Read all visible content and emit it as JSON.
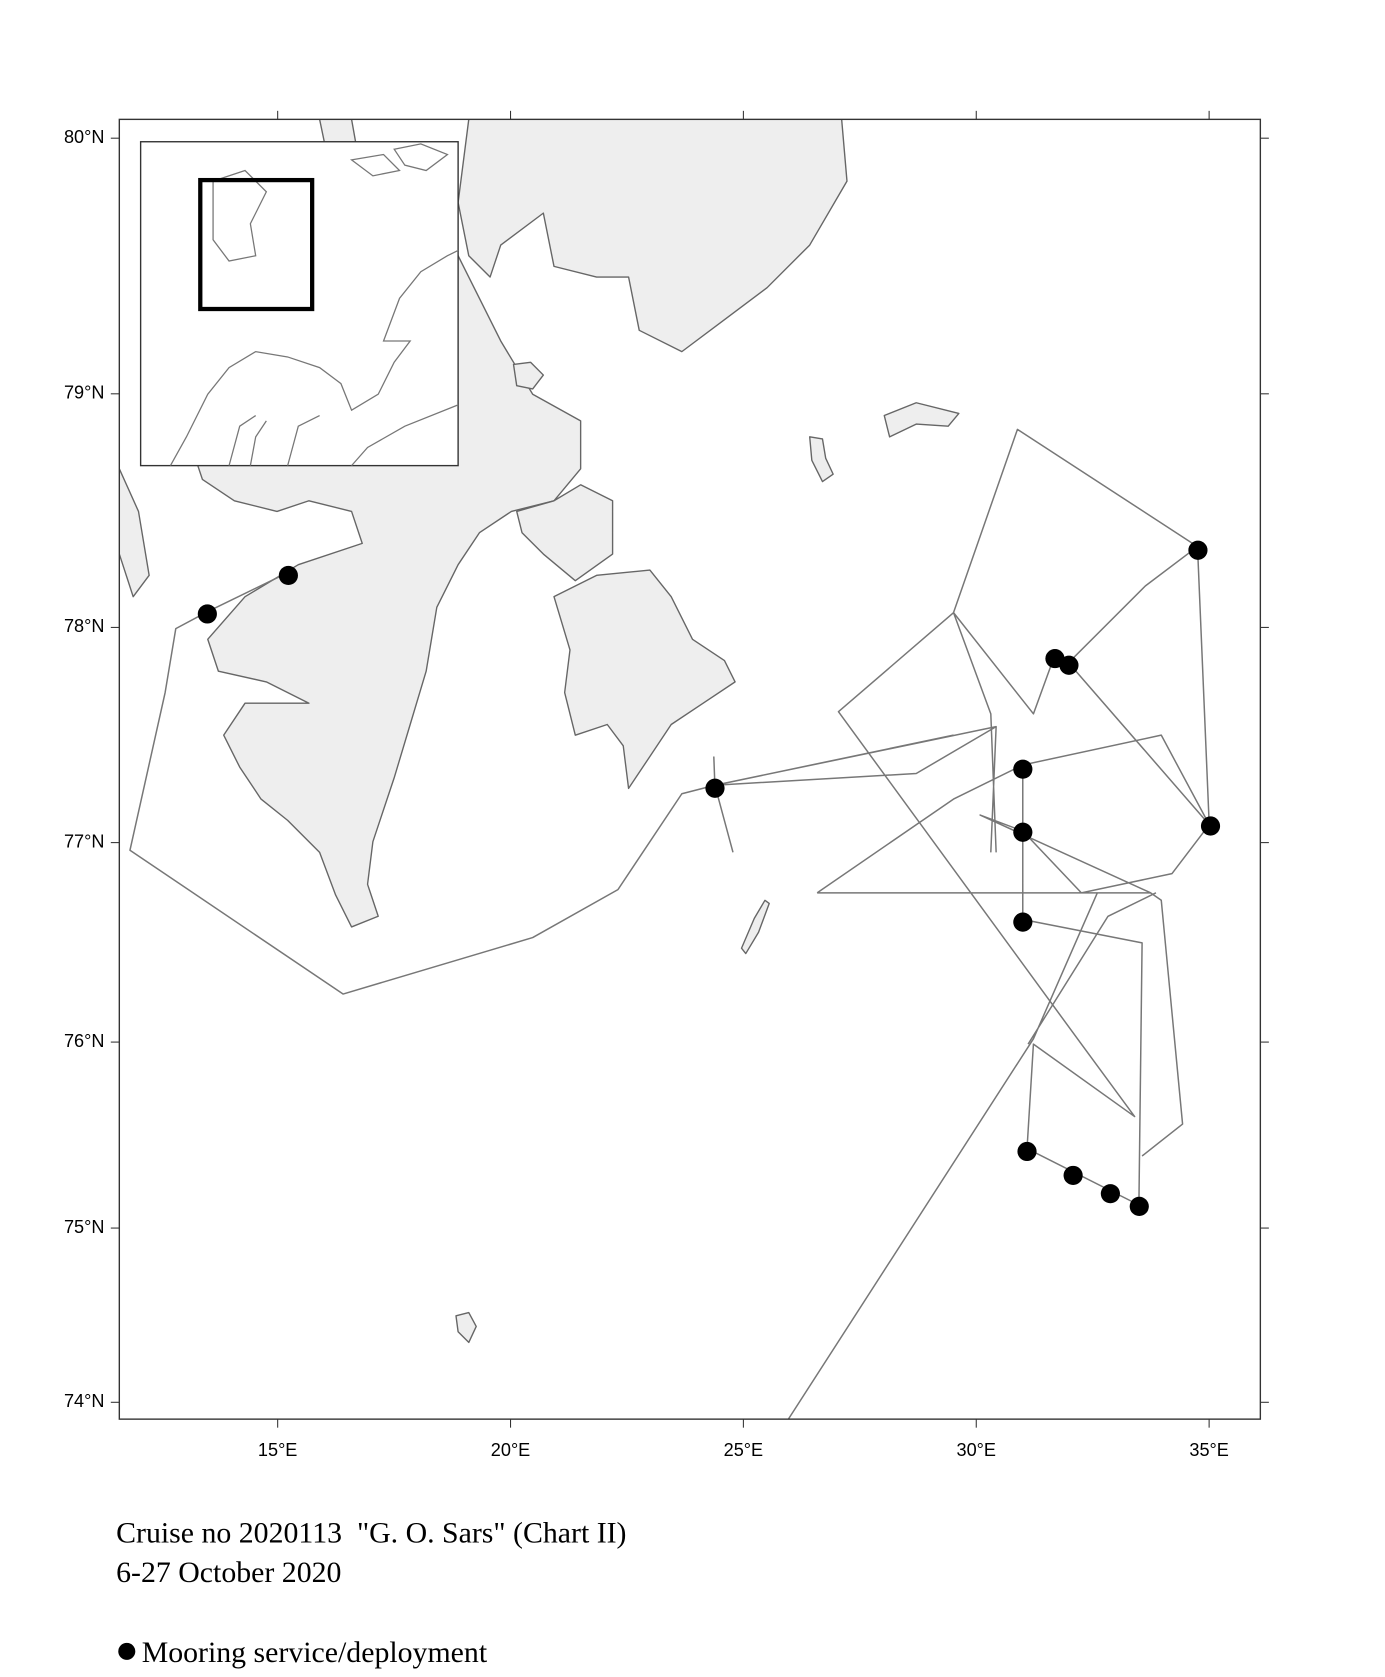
{
  "map": {
    "xlim": [
      11.6,
      36.1
    ],
    "ylim": [
      73.9,
      80.07
    ],
    "lat_ticks": [
      {
        "value": 80,
        "label": "80°N"
      },
      {
        "value": 79,
        "label": "79°N"
      },
      {
        "value": 78,
        "label": "78°N"
      },
      {
        "value": 77,
        "label": "77°N"
      },
      {
        "value": 76,
        "label": "76°N"
      },
      {
        "value": 75,
        "label": "75°N"
      },
      {
        "value": 74,
        "label": "74°N"
      }
    ],
    "lon_ticks": [
      {
        "value": 15,
        "label": "15°E"
      },
      {
        "value": 20,
        "label": "20°E"
      },
      {
        "value": 25,
        "label": "25°E"
      },
      {
        "value": 30,
        "label": "30°E"
      },
      {
        "value": 35,
        "label": "35°E"
      }
    ],
    "moorings": [
      {
        "lon": 13.49,
        "lat": 78.06
      },
      {
        "lon": 15.23,
        "lat": 78.23
      },
      {
        "lon": 24.39,
        "lat": 77.26
      },
      {
        "lon": 34.76,
        "lat": 78.34
      },
      {
        "lon": 31.69,
        "lat": 77.86
      },
      {
        "lon": 31.99,
        "lat": 77.83
      },
      {
        "lon": 31.0,
        "lat": 77.35
      },
      {
        "lon": 31.0,
        "lat": 77.05
      },
      {
        "lon": 35.03,
        "lat": 77.08
      },
      {
        "lon": 31.0,
        "lat": 76.61
      },
      {
        "lon": 31.09,
        "lat": 75.42
      },
      {
        "lon": 32.08,
        "lat": 75.29
      },
      {
        "lon": 32.88,
        "lat": 75.19
      },
      {
        "lon": 33.5,
        "lat": 75.12
      }
    ]
  },
  "caption": {
    "line1": "Cruise no 2020113  \"G. O. Sars\" (Chart II)",
    "line2": "6-27 October 2020"
  },
  "legend": {
    "label": "Mooring service/deployment"
  }
}
